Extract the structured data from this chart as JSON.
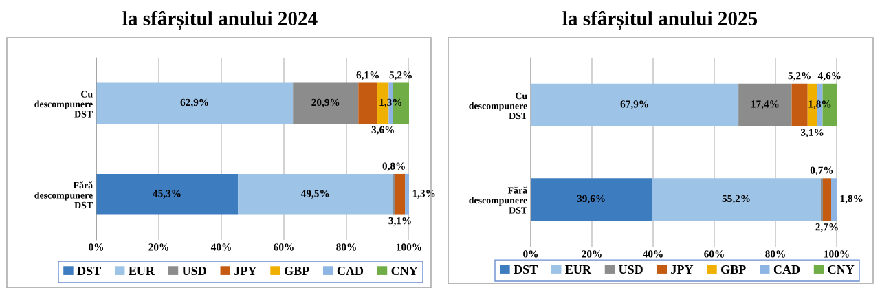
{
  "chart_data": [
    {
      "type": "bar",
      "orientation": "horizontal",
      "stacked": true,
      "title": "la sfârșitul anului 2024",
      "categories": [
        "Cu descompunere DST",
        "Fără descompunere DST"
      ],
      "xlim": [
        0,
        100
      ],
      "xticks": [
        {
          "value": 0,
          "label": "0%"
        },
        {
          "value": 20,
          "label": "20%"
        },
        {
          "value": 40,
          "label": "40%"
        },
        {
          "value": 60,
          "label": "60%"
        },
        {
          "value": 80,
          "label": "80%"
        },
        {
          "value": 100,
          "label": "100%"
        }
      ],
      "grid": "x",
      "legend": "bottom",
      "series": [
        {
          "name": "DST",
          "color": "#3e7cc0",
          "values": [
            0,
            45.3
          ],
          "value_labels": [
            null,
            "45,3%"
          ]
        },
        {
          "name": "EUR",
          "color": "#9dc3e6",
          "values": [
            62.9,
            49.5
          ],
          "value_labels": [
            "62,9%",
            "49,5%"
          ]
        },
        {
          "name": "USD",
          "color": "#8c8c8c",
          "values": [
            20.9,
            0.8
          ],
          "value_labels": [
            "20,9%",
            "0,8%"
          ]
        },
        {
          "name": "JPY",
          "color": "#c55a11",
          "values": [
            6.1,
            3.1
          ],
          "value_labels": [
            "6,1%",
            "3,1%"
          ]
        },
        {
          "name": "GBP",
          "color": "#f0b000",
          "values": [
            3.6,
            0
          ],
          "value_labels": [
            "3,6%",
            null
          ]
        },
        {
          "name": "CAD",
          "color": "#8eb4e3",
          "values": [
            1.3,
            1.3
          ],
          "value_labels": [
            "1,3%",
            "1,3%"
          ]
        },
        {
          "name": "CNY",
          "color": "#70ad47",
          "values": [
            5.2,
            0
          ],
          "value_labels": [
            "5,2%",
            null
          ]
        }
      ]
    },
    {
      "type": "bar",
      "orientation": "horizontal",
      "stacked": true,
      "title": "la sfârșitul anului 2025",
      "categories": [
        "Cu descompunere DST",
        "Fără descompunere DST"
      ],
      "xlim": [
        0,
        100
      ],
      "xticks": [
        {
          "value": 0,
          "label": "0%"
        },
        {
          "value": 20,
          "label": "20%"
        },
        {
          "value": 40,
          "label": "40%"
        },
        {
          "value": 60,
          "label": "60%"
        },
        {
          "value": 80,
          "label": "80%"
        },
        {
          "value": 100,
          "label": "100%"
        }
      ],
      "grid": "x",
      "legend": "bottom",
      "series": [
        {
          "name": "DST",
          "color": "#3e7cc0",
          "values": [
            0,
            39.6
          ],
          "value_labels": [
            null,
            "39,6%"
          ]
        },
        {
          "name": "EUR",
          "color": "#9dc3e6",
          "values": [
            67.9,
            55.2
          ],
          "value_labels": [
            "67,9%",
            "55,2%"
          ]
        },
        {
          "name": "USD",
          "color": "#8c8c8c",
          "values": [
            17.4,
            0.7
          ],
          "value_labels": [
            "17,4%",
            "0,7%"
          ]
        },
        {
          "name": "JPY",
          "color": "#c55a11",
          "values": [
            5.2,
            2.7
          ],
          "value_labels": [
            "5,2%",
            "2,7%"
          ]
        },
        {
          "name": "GBP",
          "color": "#f0b000",
          "values": [
            3.1,
            0
          ],
          "value_labels": [
            "3,1%",
            null
          ]
        },
        {
          "name": "CAD",
          "color": "#8eb4e3",
          "values": [
            1.8,
            1.8
          ],
          "value_labels": [
            "1,8%",
            "1,8%"
          ]
        },
        {
          "name": "CNY",
          "color": "#70ad47",
          "values": [
            4.6,
            0
          ],
          "value_labels": [
            "4,6%",
            null
          ]
        }
      ]
    }
  ]
}
